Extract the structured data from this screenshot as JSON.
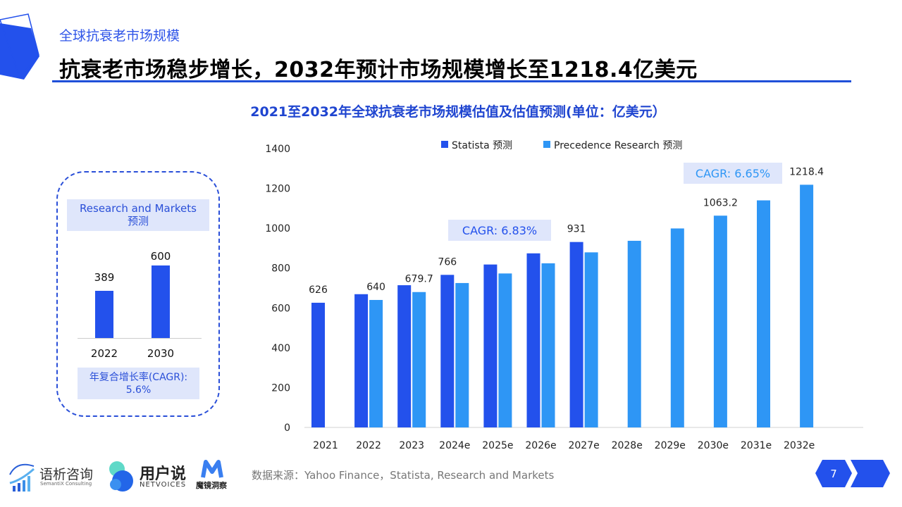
{
  "header": {
    "subtitle": "全球抗衰老市场规模",
    "title": "抗衰老市场稳步增长，2032年预计市场规模增长至1218.4亿美元"
  },
  "side_panel": {
    "source_line1": "Research and Markets",
    "source_line2": "预测",
    "categories": [
      "2022",
      "2030"
    ],
    "values": [
      389,
      600
    ],
    "cagr_line1": "年复合增长率(CAGR):",
    "cagr_line2": "5.6%"
  },
  "chart_data": {
    "type": "bar",
    "title": "2021至2032年全球抗衰老市场规模估值及估值预测(单位：亿美元）",
    "categories": [
      "2021",
      "2022",
      "2023",
      "2024e",
      "2025e",
      "2026e",
      "2027e",
      "2028e",
      "2029e",
      "2030e",
      "2031e",
      "2032e"
    ],
    "series": [
      {
        "name": "Statista 预测",
        "color": "#2351ec",
        "values": [
          626,
          669,
          714,
          766,
          818,
          874,
          931,
          null,
          null,
          null,
          null,
          null
        ],
        "labels": [
          "626",
          null,
          null,
          "766",
          null,
          null,
          "931",
          null,
          null,
          null,
          null,
          null
        ]
      },
      {
        "name": "Precedence Research 预测",
        "color": "#2e96f5",
        "values": [
          null,
          640,
          679.7,
          725,
          773,
          824,
          879,
          937,
          999,
          1063.2,
          1140,
          1218.4
        ],
        "labels": [
          null,
          "640",
          "679.7",
          null,
          null,
          null,
          null,
          null,
          null,
          "1063.2",
          null,
          "1218.4"
        ]
      }
    ],
    "ylim": [
      0,
      1400
    ],
    "yticks": [
      "0",
      "200",
      "400",
      "600",
      "800",
      "1000",
      "1200",
      "1400"
    ],
    "annotations": [
      "CAGR: 6.83%",
      "CAGR: 6.65%"
    ],
    "legend": "top",
    "grid": false
  },
  "footer": {
    "source": "数据来源：Yahoo Finance，Statista, Research and Markets",
    "logos": {
      "semantix_cn": "语析咨询",
      "semantix_en": "SemantiX Consulting",
      "netvoices_cn": "用户说",
      "netvoices_en": "NETVOICES",
      "mojing": "魔镜洞察"
    },
    "page_number": "7"
  }
}
